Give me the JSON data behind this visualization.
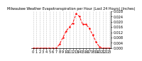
{
  "title": "Milwaukee Weather Evapotranspiration per Hour (Last 24 Hours) (Inches)",
  "hours": [
    0,
    1,
    2,
    3,
    4,
    5,
    6,
    7,
    8,
    9,
    10,
    11,
    12,
    13,
    14,
    15,
    16,
    17,
    18,
    19,
    20,
    21,
    22,
    23
  ],
  "values": [
    0,
    0,
    0,
    0,
    0,
    0,
    0,
    0,
    0.003,
    0.008,
    0.013,
    0.016,
    0.019,
    0.026,
    0.024,
    0.018,
    0.018,
    0.015,
    0.01,
    0.005,
    0.001,
    0,
    0,
    0
  ],
  "line_color": "#ff0000",
  "bg_color": "#ffffff",
  "grid_color": "#aaaaaa",
  "ylim": [
    0,
    0.028
  ],
  "ytick_values": [
    0.0,
    0.004,
    0.008,
    0.012,
    0.016,
    0.02,
    0.024,
    0.028
  ],
  "xtick_values": [
    0,
    1,
    2,
    3,
    4,
    5,
    6,
    7,
    8,
    9,
    10,
    11,
    12,
    13,
    14,
    15,
    16,
    17,
    18,
    19,
    20,
    21,
    22,
    23
  ],
  "title_fontsize": 3.5,
  "tick_fontsize": 3.5
}
